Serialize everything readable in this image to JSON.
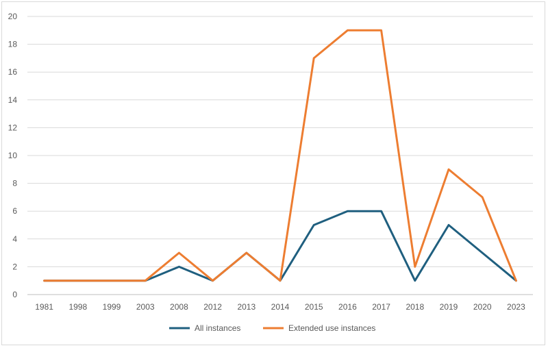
{
  "chart_data": {
    "type": "line",
    "categories": [
      "1981",
      "1998",
      "1999",
      "2003",
      "2008",
      "2012",
      "2013",
      "2014",
      "2015",
      "2016",
      "2017",
      "2018",
      "2019",
      "2020",
      "2023"
    ],
    "series": [
      {
        "name": "All instances",
        "color": "#1f5f7f",
        "values": [
          1,
          1,
          1,
          1,
          2,
          1,
          3,
          1,
          5,
          6,
          6,
          1,
          5,
          3,
          1
        ]
      },
      {
        "name": "Extended use instances",
        "color": "#ed7d31",
        "values": [
          1,
          1,
          1,
          1,
          3,
          1,
          3,
          1,
          17,
          19,
          19,
          2,
          9,
          7,
          1
        ]
      }
    ],
    "title": "",
    "xlabel": "",
    "ylabel": "",
    "ylim": [
      0,
      20
    ],
    "yticks": [
      0,
      2,
      4,
      6,
      8,
      10,
      12,
      14,
      16,
      18,
      20
    ],
    "grid": true,
    "legend": "bottom-center"
  }
}
